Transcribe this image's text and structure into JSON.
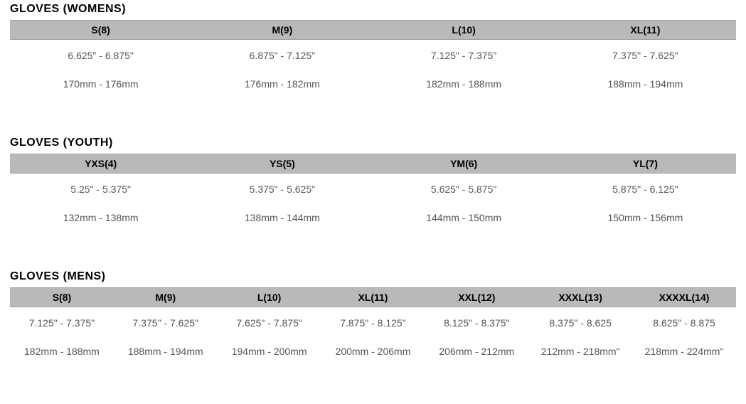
{
  "tables": [
    {
      "title": "GLOVES (WOMENS)",
      "title_fontsize": 16,
      "title_color": "#000000",
      "header_bg": "#b9b9b9",
      "header_fontsize": 14,
      "header_fontweight": 900,
      "cell_fontsize": 14,
      "cell_color": "#555555",
      "columns": [
        "S(8)",
        "M(9)",
        "L(10)",
        "XL(11)"
      ],
      "rows": [
        [
          "6.625\" - 6.875\"",
          "6.875\" - 7.125\"",
          "7.125\" - 7.375\"",
          "7.375\" - 7.625\""
        ],
        [
          "170mm - 176mm",
          "176mm - 182mm",
          "182mm - 188mm",
          "188mm - 194mm"
        ]
      ]
    },
    {
      "title": "GLOVES (YOUTH)",
      "title_fontsize": 16,
      "title_color": "#000000",
      "header_bg": "#b9b9b9",
      "header_fontsize": 14,
      "header_fontweight": 900,
      "cell_fontsize": 14,
      "cell_color": "#555555",
      "columns": [
        "YXS(4)",
        "YS(5)",
        "YM(6)",
        "YL(7)"
      ],
      "rows": [
        [
          "5.25\" - 5.375\"",
          "5.375\" - 5.625\"",
          "5.625\" - 5.875\"",
          "5.875\" - 6.125\""
        ],
        [
          "132mm - 138mm",
          "138mm - 144mm",
          "144mm - 150mm",
          "150mm - 156mm"
        ]
      ]
    },
    {
      "title": "GLOVES (MENS)",
      "title_fontsize": 16,
      "title_color": "#000000",
      "header_bg": "#b9b9b9",
      "header_fontsize": 14,
      "header_fontweight": 900,
      "cell_fontsize": 14,
      "cell_color": "#555555",
      "columns": [
        "S(8)",
        "M(9)",
        "L(10)",
        "XL(11)",
        "XXL(12)",
        "XXXL(13)",
        "XXXXL(14)"
      ],
      "rows": [
        [
          "7.125\" - 7.375\"",
          "7.375\" - 7.625\"",
          "7.625\" - 7.875\"",
          "7.875\" - 8.125\"",
          "8.125\" - 8.375\"",
          "8.375\" - 8.625",
          "8.625\" - 8.875"
        ],
        [
          "182mm - 188mm",
          "188mm - 194mm",
          "194mm - 200mm",
          "200mm - 206mm",
          "206mm - 212mm",
          "212mm - 218mm\"",
          "218mm - 224mm\""
        ]
      ]
    }
  ]
}
